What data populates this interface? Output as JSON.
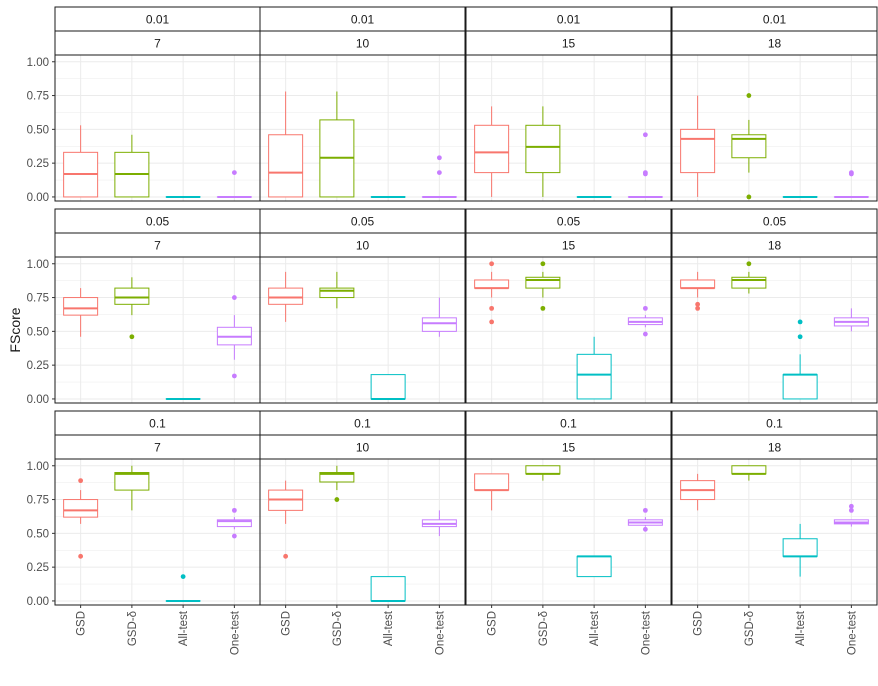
{
  "chart_data": {
    "type": "boxplot",
    "title": "",
    "xlabel": "",
    "ylabel": "FScore",
    "ylim": [
      -0.03,
      1.05
    ],
    "yticks": [
      0.0,
      0.25,
      0.5,
      0.75,
      1.0
    ],
    "ytick_labels": [
      "0.00",
      "0.25",
      "0.50",
      "0.75",
      "1.00"
    ],
    "grid": true,
    "categories": [
      "GSD",
      "GSD-δ",
      "All-test",
      "One-test"
    ],
    "colors": {
      "GSD": "#F8766D",
      "GSD-δ": "#7CAE00",
      "All-test": "#00BFC4",
      "One-test": "#C77CFF"
    },
    "facets": [
      {
        "row": "0.01",
        "col": "7",
        "boxes": [
          {
            "category": "GSD",
            "min": 0.0,
            "q1": 0.0,
            "median": 0.17,
            "q3": 0.33,
            "max": 0.53,
            "outliers": []
          },
          {
            "category": "GSD-δ",
            "min": 0.0,
            "q1": 0.0,
            "median": 0.17,
            "q3": 0.33,
            "max": 0.46,
            "outliers": []
          },
          {
            "category": "All-test",
            "min": 0.0,
            "q1": 0.0,
            "median": 0.0,
            "q3": 0.0,
            "max": 0.0,
            "outliers": []
          },
          {
            "category": "One-test",
            "min": 0.0,
            "q1": 0.0,
            "median": 0.0,
            "q3": 0.0,
            "max": 0.0,
            "outliers": [
              0.18
            ]
          }
        ]
      },
      {
        "row": "0.01",
        "col": "10",
        "boxes": [
          {
            "category": "GSD",
            "min": 0.0,
            "q1": 0.0,
            "median": 0.18,
            "q3": 0.46,
            "max": 0.78,
            "outliers": []
          },
          {
            "category": "GSD-δ",
            "min": 0.0,
            "q1": 0.0,
            "median": 0.29,
            "q3": 0.57,
            "max": 0.78,
            "outliers": []
          },
          {
            "category": "All-test",
            "min": 0.0,
            "q1": 0.0,
            "median": 0.0,
            "q3": 0.0,
            "max": 0.0,
            "outliers": []
          },
          {
            "category": "One-test",
            "min": 0.0,
            "q1": 0.0,
            "median": 0.0,
            "q3": 0.0,
            "max": 0.0,
            "outliers": [
              0.18,
              0.29
            ]
          }
        ]
      },
      {
        "row": "0.01",
        "col": "15",
        "boxes": [
          {
            "category": "GSD",
            "min": 0.0,
            "q1": 0.18,
            "median": 0.33,
            "q3": 0.53,
            "max": 0.67,
            "outliers": []
          },
          {
            "category": "GSD-δ",
            "min": 0.0,
            "q1": 0.18,
            "median": 0.37,
            "q3": 0.53,
            "max": 0.67,
            "outliers": []
          },
          {
            "category": "All-test",
            "min": 0.0,
            "q1": 0.0,
            "median": 0.0,
            "q3": 0.0,
            "max": 0.0,
            "outliers": []
          },
          {
            "category": "One-test",
            "min": 0.0,
            "q1": 0.0,
            "median": 0.0,
            "q3": 0.0,
            "max": 0.0,
            "outliers": [
              0.17,
              0.18,
              0.46
            ]
          }
        ]
      },
      {
        "row": "0.01",
        "col": "18",
        "boxes": [
          {
            "category": "GSD",
            "min": 0.0,
            "q1": 0.18,
            "median": 0.43,
            "q3": 0.5,
            "max": 0.75,
            "outliers": []
          },
          {
            "category": "GSD-δ",
            "min": 0.18,
            "q1": 0.29,
            "median": 0.43,
            "q3": 0.46,
            "max": 0.57,
            "outliers": [
              0.0,
              0.75
            ]
          },
          {
            "category": "All-test",
            "min": 0.0,
            "q1": 0.0,
            "median": 0.0,
            "q3": 0.0,
            "max": 0.0,
            "outliers": []
          },
          {
            "category": "One-test",
            "min": 0.0,
            "q1": 0.0,
            "median": 0.0,
            "q3": 0.0,
            "max": 0.0,
            "outliers": [
              0.17,
              0.18
            ]
          }
        ]
      },
      {
        "row": "0.05",
        "col": "7",
        "boxes": [
          {
            "category": "GSD",
            "min": 0.46,
            "q1": 0.62,
            "median": 0.67,
            "q3": 0.75,
            "max": 0.82,
            "outliers": []
          },
          {
            "category": "GSD-δ",
            "min": 0.62,
            "q1": 0.7,
            "median": 0.75,
            "q3": 0.82,
            "max": 0.9,
            "outliers": [
              0.46
            ]
          },
          {
            "category": "All-test",
            "min": 0.0,
            "q1": 0.0,
            "median": 0.0,
            "q3": 0.0,
            "max": 0.0,
            "outliers": []
          },
          {
            "category": "One-test",
            "min": 0.29,
            "q1": 0.4,
            "median": 0.46,
            "q3": 0.53,
            "max": 0.62,
            "outliers": [
              0.17,
              0.75
            ]
          }
        ]
      },
      {
        "row": "0.05",
        "col": "10",
        "boxes": [
          {
            "category": "GSD",
            "min": 0.57,
            "q1": 0.7,
            "median": 0.75,
            "q3": 0.82,
            "max": 0.94,
            "outliers": []
          },
          {
            "category": "GSD-δ",
            "min": 0.67,
            "q1": 0.75,
            "median": 0.8,
            "q3": 0.82,
            "max": 0.94,
            "outliers": []
          },
          {
            "category": "All-test",
            "min": 0.0,
            "q1": 0.0,
            "median": 0.0,
            "q3": 0.18,
            "max": 0.18,
            "outliers": []
          },
          {
            "category": "One-test",
            "min": 0.46,
            "q1": 0.5,
            "median": 0.56,
            "q3": 0.6,
            "max": 0.75,
            "outliers": []
          }
        ]
      },
      {
        "row": "0.05",
        "col": "15",
        "boxes": [
          {
            "category": "GSD",
            "min": 0.75,
            "q1": 0.82,
            "median": 0.82,
            "q3": 0.88,
            "max": 0.94,
            "outliers": [
              0.57,
              0.67,
              1.0
            ]
          },
          {
            "category": "GSD-δ",
            "min": 0.75,
            "q1": 0.82,
            "median": 0.88,
            "q3": 0.9,
            "max": 0.94,
            "outliers": [
              0.67,
              1.0
            ]
          },
          {
            "category": "All-test",
            "min": 0.0,
            "q1": 0.0,
            "median": 0.18,
            "q3": 0.33,
            "max": 0.46,
            "outliers": []
          },
          {
            "category": "One-test",
            "min": 0.53,
            "q1": 0.55,
            "median": 0.57,
            "q3": 0.6,
            "max": 0.62,
            "outliers": [
              0.48,
              0.67
            ]
          }
        ]
      },
      {
        "row": "0.05",
        "col": "18",
        "boxes": [
          {
            "category": "GSD",
            "min": 0.75,
            "q1": 0.82,
            "median": 0.82,
            "q3": 0.88,
            "max": 0.94,
            "outliers": [
              0.67,
              0.7
            ]
          },
          {
            "category": "GSD-δ",
            "min": 0.78,
            "q1": 0.82,
            "median": 0.88,
            "q3": 0.9,
            "max": 0.94,
            "outliers": [
              1.0
            ]
          },
          {
            "category": "All-test",
            "min": 0.0,
            "q1": 0.0,
            "median": 0.18,
            "q3": 0.18,
            "max": 0.33,
            "outliers": [
              0.46,
              0.57
            ]
          },
          {
            "category": "One-test",
            "min": 0.5,
            "q1": 0.54,
            "median": 0.57,
            "q3": 0.6,
            "max": 0.67,
            "outliers": []
          }
        ]
      },
      {
        "row": "0.1",
        "col": "7",
        "boxes": [
          {
            "category": "GSD",
            "min": 0.57,
            "q1": 0.62,
            "median": 0.67,
            "q3": 0.75,
            "max": 0.82,
            "outliers": [
              0.33,
              0.89
            ]
          },
          {
            "category": "GSD-δ",
            "min": 0.67,
            "q1": 0.82,
            "median": 0.94,
            "q3": 0.95,
            "max": 1.0,
            "outliers": []
          },
          {
            "category": "All-test",
            "min": 0.0,
            "q1": 0.0,
            "median": 0.0,
            "q3": 0.0,
            "max": 0.0,
            "outliers": [
              0.18
            ]
          },
          {
            "category": "One-test",
            "min": 0.53,
            "q1": 0.55,
            "median": 0.59,
            "q3": 0.6,
            "max": 0.62,
            "outliers": [
              0.48,
              0.67
            ]
          }
        ]
      },
      {
        "row": "0.1",
        "col": "10",
        "boxes": [
          {
            "category": "GSD",
            "min": 0.57,
            "q1": 0.67,
            "median": 0.75,
            "q3": 0.82,
            "max": 0.89,
            "outliers": [
              0.33
            ]
          },
          {
            "category": "GSD-δ",
            "min": 0.82,
            "q1": 0.88,
            "median": 0.94,
            "q3": 0.95,
            "max": 1.0,
            "outliers": [
              0.75
            ]
          },
          {
            "category": "All-test",
            "min": 0.0,
            "q1": 0.0,
            "median": 0.0,
            "q3": 0.18,
            "max": 0.18,
            "outliers": []
          },
          {
            "category": "One-test",
            "min": 0.48,
            "q1": 0.55,
            "median": 0.57,
            "q3": 0.6,
            "max": 0.67,
            "outliers": []
          }
        ]
      },
      {
        "row": "0.1",
        "col": "15",
        "boxes": [
          {
            "category": "GSD",
            "min": 0.67,
            "q1": 0.82,
            "median": 0.82,
            "q3": 0.94,
            "max": 0.94,
            "outliers": []
          },
          {
            "category": "GSD-δ",
            "min": 0.89,
            "q1": 0.94,
            "median": 0.94,
            "q3": 1.0,
            "max": 1.0,
            "outliers": []
          },
          {
            "category": "All-test",
            "min": 0.18,
            "q1": 0.18,
            "median": 0.33,
            "q3": 0.33,
            "max": 0.33,
            "outliers": []
          },
          {
            "category": "One-test",
            "min": 0.55,
            "q1": 0.56,
            "median": 0.58,
            "q3": 0.6,
            "max": 0.62,
            "outliers": [
              0.53,
              0.67
            ]
          }
        ]
      },
      {
        "row": "0.1",
        "col": "18",
        "boxes": [
          {
            "category": "GSD",
            "min": 0.67,
            "q1": 0.75,
            "median": 0.82,
            "q3": 0.89,
            "max": 0.94,
            "outliers": []
          },
          {
            "category": "GSD-δ",
            "min": 0.89,
            "q1": 0.94,
            "median": 0.94,
            "q3": 1.0,
            "max": 1.0,
            "outliers": []
          },
          {
            "category": "All-test",
            "min": 0.18,
            "q1": 0.33,
            "median": 0.33,
            "q3": 0.46,
            "max": 0.57,
            "outliers": []
          },
          {
            "category": "One-test",
            "min": 0.55,
            "q1": 0.57,
            "median": 0.58,
            "q3": 0.6,
            "max": 0.6,
            "outliers": [
              0.67,
              0.7
            ]
          }
        ]
      }
    ]
  }
}
